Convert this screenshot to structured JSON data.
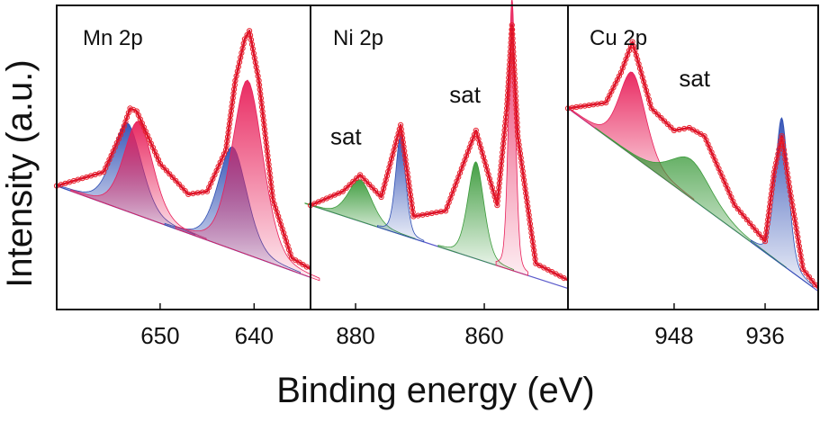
{
  "figure": {
    "ylabel": "Intensity (a.u.)",
    "xlabel": "Binding energy (eV)"
  },
  "colors": {
    "frame": "#111111",
    "raw_marker": "#e8202c",
    "envelope": "#d8102a",
    "pink_fill": "#e8205a",
    "blue_fill": "#2f4fb4",
    "green_fill": "#3a9a3a",
    "background_line": "#5a5acb"
  },
  "chart_data": [
    {
      "type": "line",
      "title": "Mn 2p",
      "x_reversed": true,
      "xlim": [
        661,
        634
      ],
      "ylim": [
        0,
        1
      ],
      "xticks": [
        650,
        640
      ],
      "xlabel": "",
      "ylabel": "",
      "labels": [],
      "peaks": [
        {
          "center": 653.5,
          "height": 0.32,
          "width": 1.6,
          "color": "blue"
        },
        {
          "center": 652.3,
          "height": 0.34,
          "width": 1.6,
          "color": "pink"
        },
        {
          "center": 642.3,
          "height": 0.37,
          "width": 1.6,
          "color": "blue"
        },
        {
          "center": 640.7,
          "height": 0.63,
          "width": 1.7,
          "color": "pink"
        }
      ],
      "background": {
        "start": 0.42,
        "end": 0.09
      },
      "series": [
        {
          "name": "",
          "x": [
            661,
            656,
            654,
            653.2,
            652.5,
            650,
            647,
            645,
            643,
            642,
            641,
            640.5,
            639.5,
            638,
            636,
            634
          ],
          "y": [
            0.42,
            0.47,
            0.62,
            0.7,
            0.69,
            0.5,
            0.39,
            0.4,
            0.55,
            0.8,
            0.95,
            0.98,
            0.8,
            0.37,
            0.16,
            0.12
          ]
        }
      ]
    },
    {
      "type": "line",
      "title": "Ni 2p",
      "x_reversed": true,
      "xlim": [
        887,
        847
      ],
      "ylim": [
        0,
        1
      ],
      "xticks": [
        880,
        860
      ],
      "xlabel": "",
      "ylabel": "",
      "labels": [
        {
          "text": "sat",
          "x": 881.5,
          "y": 0.57
        },
        {
          "text": "sat",
          "x": 863,
          "y": 0.72
        }
      ],
      "peaks": [
        {
          "center": 879.3,
          "height": 0.15,
          "width": 1.9,
          "color": "green"
        },
        {
          "center": 873.0,
          "height": 0.36,
          "width": 0.8,
          "color": "blue"
        },
        {
          "center": 861.3,
          "height": 0.35,
          "width": 1.3,
          "color": "green"
        },
        {
          "center": 855.7,
          "height": 0.98,
          "width": 0.55,
          "color": "pink"
        }
      ],
      "background": {
        "start": 0.35,
        "end": 0.05
      },
      "series": [
        {
          "name": "",
          "x": [
            887,
            882,
            879.3,
            876,
            873,
            871,
            866,
            861.3,
            858,
            856.5,
            855.7,
            854.8,
            852,
            847
          ],
          "y": [
            0.35,
            0.4,
            0.46,
            0.38,
            0.64,
            0.31,
            0.33,
            0.62,
            0.35,
            0.7,
            1.0,
            0.6,
            0.14,
            0.08
          ]
        }
      ]
    },
    {
      "type": "line",
      "title": "Cu 2p",
      "x_reversed": true,
      "xlim": [
        962,
        929
      ],
      "ylim": [
        0,
        1
      ],
      "xticks": [
        948,
        936
      ],
      "xlabel": "",
      "ylabel": "",
      "labels": [
        {
          "text": "sat",
          "x": 945.3,
          "y": 0.78
        }
      ],
      "peaks": [
        {
          "center": 953.5,
          "height": 0.3,
          "width": 1.8,
          "color": "pink"
        },
        {
          "center": 945.8,
          "height": 0.14,
          "width": 2.8,
          "color": "green"
        },
        {
          "center": 933.8,
          "height": 0.53,
          "width": 0.9,
          "color": "blue"
        }
      ],
      "background": {
        "start": 0.7,
        "end": 0.04
      },
      "series": [
        {
          "name": "",
          "x": [
            962,
            957,
            955,
            953.5,
            951,
            948,
            946,
            944,
            940,
            936,
            934.8,
            933.8,
            932.7,
            931,
            929
          ],
          "y": [
            0.7,
            0.72,
            0.83,
            0.94,
            0.7,
            0.62,
            0.63,
            0.6,
            0.35,
            0.22,
            0.47,
            0.6,
            0.4,
            0.12,
            0.05
          ]
        }
      ]
    }
  ]
}
